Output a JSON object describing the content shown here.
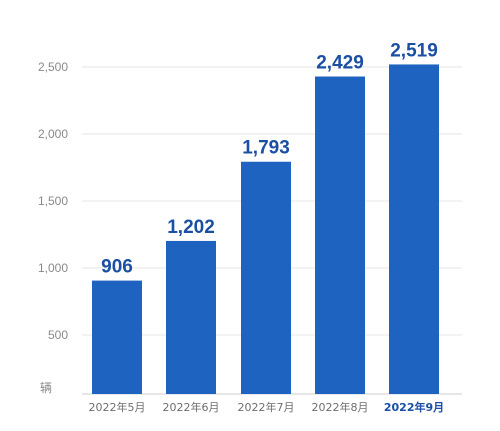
{
  "chart_data": {
    "type": "bar",
    "title": "",
    "xlabel": "",
    "ylabel": "",
    "unit": "辆",
    "categories": [
      "2022年5月",
      "2022年6月",
      "2022年7月",
      "2022年8月",
      "2022年9月"
    ],
    "highlighted_category": "2022年9月",
    "values": [
      906,
      1202,
      1793,
      2429,
      2519
    ],
    "value_labels": [
      "906",
      "1,202",
      "1,793",
      "2,429",
      "2,519"
    ],
    "yticks": [
      500,
      1000,
      1500,
      2000,
      2500
    ],
    "ytick_labels": [
      "500",
      "1,000",
      "1,500",
      "2,000",
      "2,500"
    ],
    "ylim": [
      0,
      2700
    ],
    "grid": true,
    "legend": "none",
    "colors": {
      "bar": "#1f63c0",
      "label": "#1a4fa3",
      "grid": "#e4e4e4",
      "axis_text": "#8a8a8a"
    }
  }
}
